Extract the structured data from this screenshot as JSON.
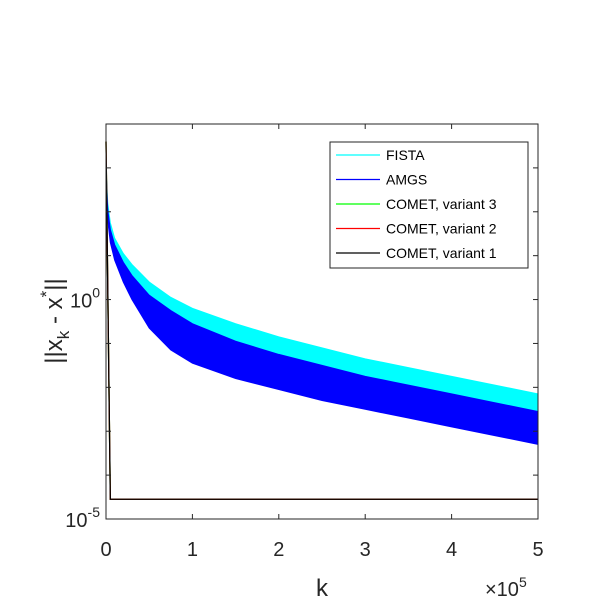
{
  "chart_data": {
    "type": "line",
    "xlabel": "k",
    "ylabel": "||x",
    "ylabel_sub": "k",
    "ylabel_rest": " - x",
    "ylabel_sup": "*",
    "ylabel_end": "||",
    "xlim": [
      0,
      500000
    ],
    "ylim_log10": [
      -5,
      4
    ],
    "yscale": "log",
    "x_ticks": [
      0,
      100000,
      200000,
      300000,
      400000,
      500000
    ],
    "x_tick_labels": [
      "0",
      "1",
      "2",
      "3",
      "4",
      "5"
    ],
    "x_exponent_base": "×10",
    "x_exponent_power": "5",
    "y_tick_labels": [
      {
        "base": "10",
        "exp": "0",
        "log10": 0
      },
      {
        "base": "10",
        "exp": "-5",
        "log10": -5
      }
    ],
    "legend_position": "top-right",
    "series": [
      {
        "name": "FISTA",
        "color": "#00ffff",
        "band": true,
        "x": [
          0,
          2000,
          5000,
          10000,
          20000,
          30000,
          50000,
          75000,
          100000,
          150000,
          200000,
          250000,
          300000,
          350000,
          400000,
          450000,
          500000
        ],
        "upper_log10": [
          3.0,
          2.2,
          1.75,
          1.4,
          1.05,
          0.8,
          0.4,
          0.05,
          -0.2,
          -0.55,
          -0.85,
          -1.1,
          -1.35,
          -1.55,
          -1.75,
          -1.95,
          -2.15
        ],
        "lower_log10": [
          3.0,
          2.0,
          1.55,
          1.2,
          0.8,
          0.5,
          0.05,
          -0.3,
          -0.6,
          -1.0,
          -1.3,
          -1.55,
          -1.75,
          -1.95,
          -2.15,
          -2.35,
          -2.55
        ]
      },
      {
        "name": "AMGS",
        "color": "#0000ff",
        "band": true,
        "x": [
          0,
          2000,
          5000,
          10000,
          20000,
          30000,
          50000,
          75000,
          100000,
          150000,
          200000,
          250000,
          300000,
          350000,
          400000,
          450000,
          500000
        ],
        "upper_log10": [
          3.0,
          2.05,
          1.6,
          1.25,
          0.85,
          0.55,
          0.1,
          -0.25,
          -0.55,
          -0.95,
          -1.25,
          -1.5,
          -1.75,
          -1.95,
          -2.15,
          -2.35,
          -2.55
        ],
        "lower_log10": [
          3.0,
          1.8,
          1.3,
          0.9,
          0.4,
          0.0,
          -0.65,
          -1.15,
          -1.45,
          -1.8,
          -2.05,
          -2.3,
          -2.5,
          -2.7,
          -2.9,
          -3.1,
          -3.3
        ]
      },
      {
        "name": "COMET, variant 3",
        "color": "#00ff00",
        "x": [
          0,
          5000,
          8000,
          500000
        ],
        "y_log10": [
          3.6,
          -4.55,
          -4.55,
          -4.55
        ]
      },
      {
        "name": "COMET, variant 2",
        "color": "#ff0000",
        "x": [
          0,
          5000,
          8000,
          500000
        ],
        "y_log10": [
          3.6,
          -4.55,
          -4.55,
          -4.55
        ]
      },
      {
        "name": "COMET, variant 1",
        "color": "#000000",
        "x": [
          0,
          5000,
          8000,
          500000
        ],
        "y_log10": [
          3.6,
          -4.55,
          -4.55,
          -4.55
        ]
      }
    ]
  }
}
